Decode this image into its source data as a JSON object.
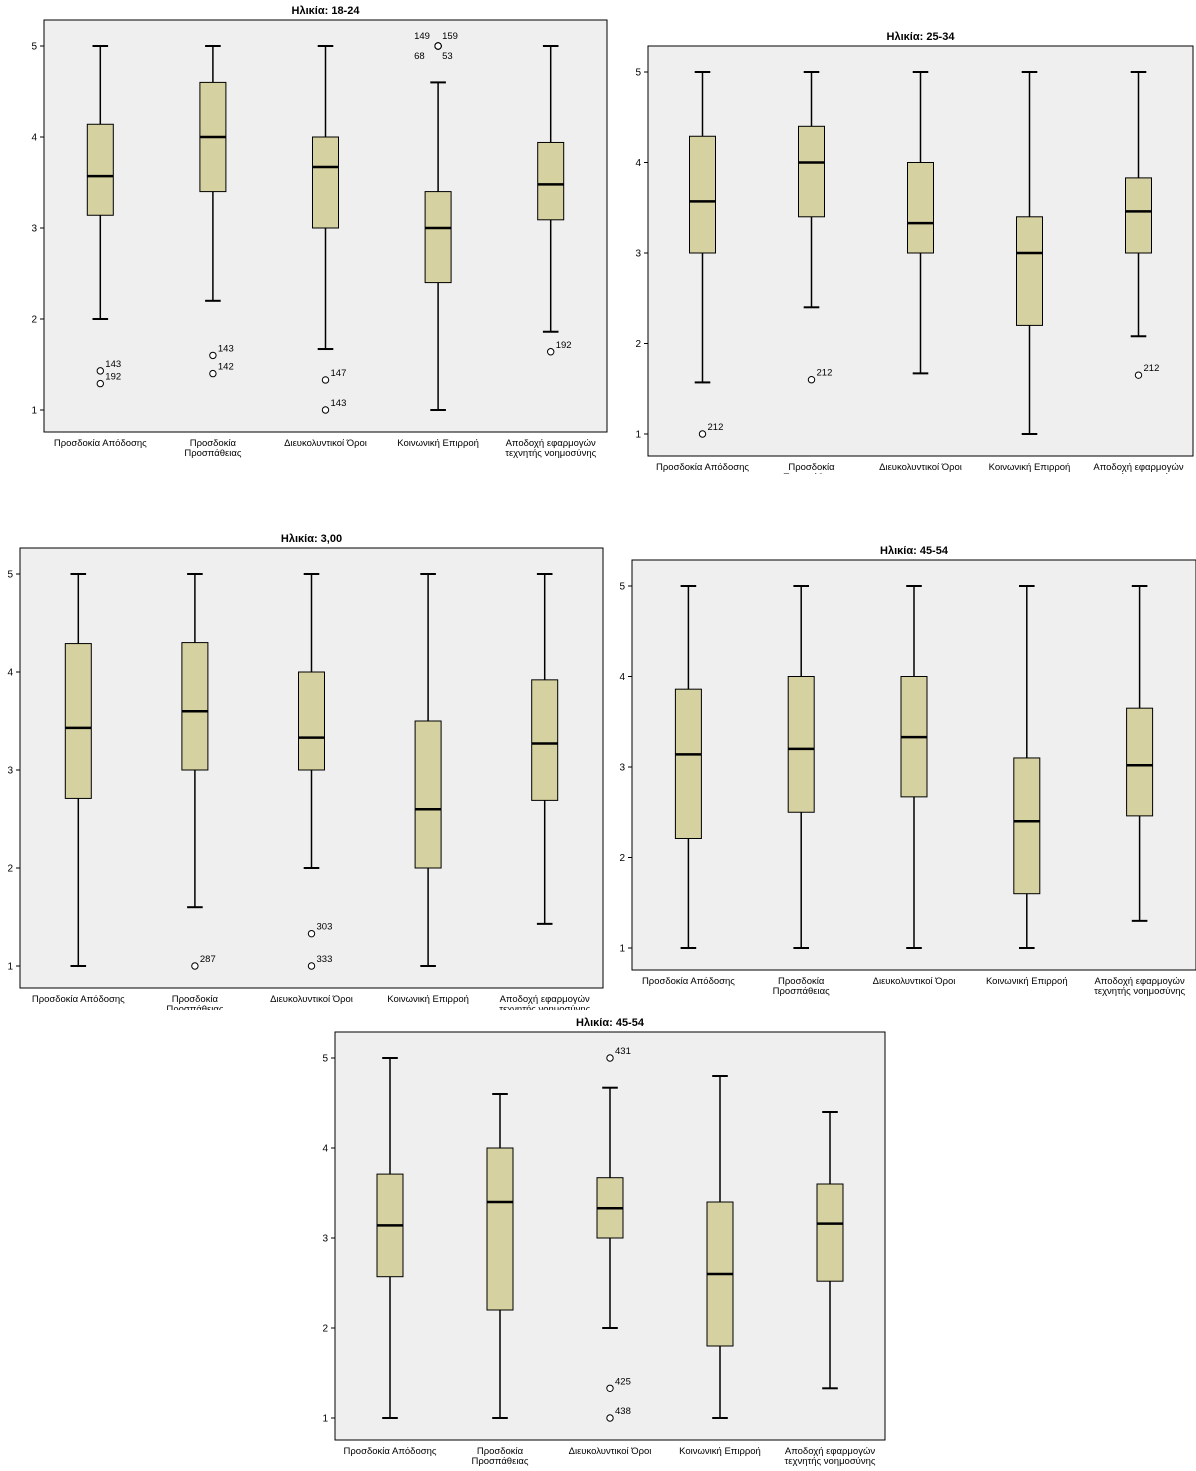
{
  "categories": [
    [
      "Προσδοκία Απόδοσης"
    ],
    [
      "Προσδοκία",
      "Προσπάθειας"
    ],
    [
      "Διευκολυντικοί Όροι"
    ],
    [
      "Κοινωνική Επιρροή"
    ],
    [
      "Αποδοχή εφαρμογών",
      "τεχνητής νοημοσύνης"
    ]
  ],
  "colors": {
    "box_fill": "#d6d1a0",
    "plot_bg": "#efefef",
    "stroke": "#000000",
    "outlier": "#ffffff"
  },
  "chart_data": [
    {
      "type": "boxplot",
      "title": "Ηλικία: 18-24",
      "ylim": [
        1,
        5
      ],
      "yticks": [
        "1",
        "2",
        "3",
        "4",
        "5"
      ],
      "boxes": [
        {
          "min": 2.0,
          "q1": 3.14,
          "median": 3.57,
          "q3": 4.14,
          "max": 5.0,
          "outliers": [
            {
              "value": 1.43,
              "label": "143"
            },
            {
              "value": 1.29,
              "label": "192"
            }
          ]
        },
        {
          "min": 2.2,
          "q1": 3.4,
          "median": 4.0,
          "q3": 4.6,
          "max": 5.0,
          "outliers": [
            {
              "value": 1.6,
              "label": "143"
            },
            {
              "value": 1.4,
              "label": "142"
            }
          ]
        },
        {
          "min": 1.67,
          "q1": 3.0,
          "median": 3.67,
          "q3": 4.0,
          "max": 5.0,
          "outliers": [
            {
              "value": 1.33,
              "label": "147"
            },
            {
              "value": 1.0,
              "label": "143"
            }
          ]
        },
        {
          "min": 1.0,
          "q1": 2.4,
          "median": 3.0,
          "q3": 3.4,
          "max": 4.6,
          "outliers": [
            {
              "value": 5.0,
              "label": "149"
            },
            {
              "value": 5.0,
              "label": "159"
            },
            {
              "value": 5.0,
              "label": "68"
            },
            {
              "value": 5.0,
              "label": "53"
            }
          ]
        },
        {
          "min": 1.86,
          "q1": 3.09,
          "median": 3.48,
          "q3": 3.94,
          "max": 5.0,
          "outliers": [
            {
              "value": 1.64,
              "label": "192"
            }
          ]
        }
      ]
    },
    {
      "type": "boxplot",
      "title": "Ηλικία: 25-34",
      "ylim": [
        1,
        5
      ],
      "yticks": [
        "1",
        "2",
        "3",
        "4",
        "5"
      ],
      "boxes": [
        {
          "min": 1.57,
          "q1": 3.0,
          "median": 3.57,
          "q3": 4.29,
          "max": 5.0,
          "outliers": [
            {
              "value": 1.0,
              "label": "212"
            }
          ]
        },
        {
          "min": 2.4,
          "q1": 3.4,
          "median": 4.0,
          "q3": 4.4,
          "max": 5.0,
          "outliers": [
            {
              "value": 1.6,
              "label": "212"
            }
          ]
        },
        {
          "min": 1.67,
          "q1": 3.0,
          "median": 3.33,
          "q3": 4.0,
          "max": 5.0,
          "outliers": []
        },
        {
          "min": 1.0,
          "q1": 2.2,
          "median": 3.0,
          "q3": 3.4,
          "max": 5.0,
          "outliers": []
        },
        {
          "min": 2.08,
          "q1": 3.0,
          "median": 3.46,
          "q3": 3.83,
          "max": 5.0,
          "outliers": [
            {
              "value": 1.65,
              "label": "212"
            }
          ]
        }
      ]
    },
    {
      "type": "boxplot",
      "title": "Ηλικία: 3,00",
      "ylim": [
        1,
        5
      ],
      "yticks": [
        "1",
        "2",
        "3",
        "4",
        "5"
      ],
      "boxes": [
        {
          "min": 1.0,
          "q1": 2.71,
          "median": 3.43,
          "q3": 4.29,
          "max": 5.0,
          "outliers": []
        },
        {
          "min": 1.6,
          "q1": 3.0,
          "median": 3.6,
          "q3": 4.3,
          "max": 5.0,
          "outliers": [
            {
              "value": 1.0,
              "label": "287"
            }
          ]
        },
        {
          "min": 2.0,
          "q1": 3.0,
          "median": 3.33,
          "q3": 4.0,
          "max": 5.0,
          "outliers": [
            {
              "value": 1.33,
              "label": "303"
            },
            {
              "value": 1.0,
              "label": "333"
            }
          ]
        },
        {
          "min": 1.0,
          "q1": 2.0,
          "median": 2.6,
          "q3": 3.5,
          "max": 5.0,
          "outliers": []
        },
        {
          "min": 1.43,
          "q1": 2.69,
          "median": 3.27,
          "q3": 3.92,
          "max": 5.0,
          "outliers": []
        }
      ]
    },
    {
      "type": "boxplot",
      "title": "Ηλικία: 45-54",
      "ylim": [
        1,
        5
      ],
      "yticks": [
        "1",
        "2",
        "3",
        "4",
        "5"
      ],
      "boxes": [
        {
          "min": 1.0,
          "q1": 2.21,
          "median": 3.14,
          "q3": 3.86,
          "max": 5.0,
          "outliers": []
        },
        {
          "min": 1.0,
          "q1": 2.5,
          "median": 3.2,
          "q3": 4.0,
          "max": 5.0,
          "outliers": []
        },
        {
          "min": 1.0,
          "q1": 2.67,
          "median": 3.33,
          "q3": 4.0,
          "max": 5.0,
          "outliers": []
        },
        {
          "min": 1.0,
          "q1": 1.6,
          "median": 2.4,
          "q3": 3.1,
          "max": 5.0,
          "outliers": []
        },
        {
          "min": 1.3,
          "q1": 2.46,
          "median": 3.02,
          "q3": 3.65,
          "max": 5.0,
          "outliers": []
        }
      ]
    },
    {
      "type": "boxplot",
      "title": "Ηλικία: 45-54",
      "ylim": [
        1,
        5
      ],
      "yticks": [
        "1",
        "2",
        "3",
        "4",
        "5"
      ],
      "boxes": [
        {
          "min": 1.0,
          "q1": 2.57,
          "median": 3.14,
          "q3": 3.71,
          "max": 5.0,
          "outliers": []
        },
        {
          "min": 1.0,
          "q1": 2.2,
          "median": 3.4,
          "q3": 4.0,
          "max": 4.6,
          "outliers": []
        },
        {
          "min": 2.0,
          "q1": 3.0,
          "median": 3.33,
          "q3": 3.67,
          "max": 4.67,
          "outliers": [
            {
              "value": 5.0,
              "label": "431"
            },
            {
              "value": 1.33,
              "label": "425"
            },
            {
              "value": 1.0,
              "label": "438"
            }
          ]
        },
        {
          "min": 1.0,
          "q1": 1.8,
          "median": 2.6,
          "q3": 3.4,
          "max": 4.8,
          "outliers": []
        },
        {
          "min": 1.33,
          "q1": 2.52,
          "median": 3.16,
          "q3": 3.6,
          "max": 4.4,
          "outliers": []
        }
      ]
    }
  ]
}
